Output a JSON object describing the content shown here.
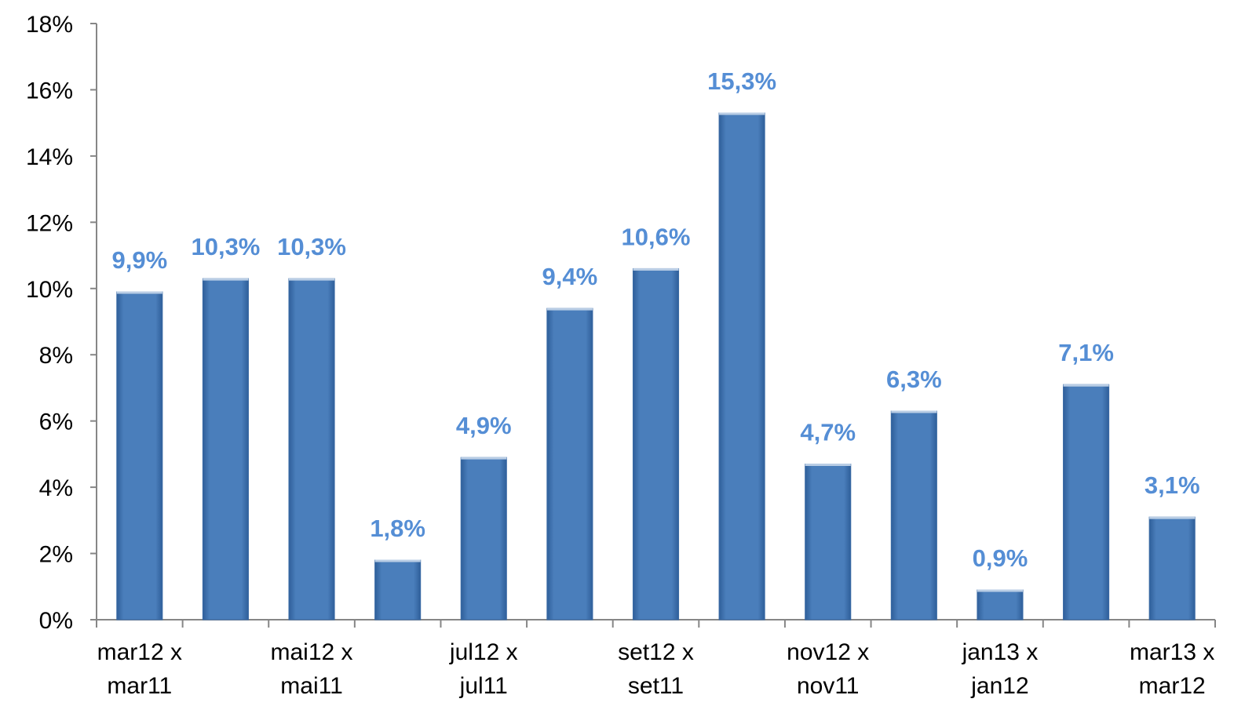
{
  "chart_data": {
    "type": "bar",
    "categories": [
      "mar12 x mar11",
      null,
      "mai12 x mai11",
      null,
      "jul12 x jul11",
      null,
      "set12 x set11",
      null,
      "nov12 x nov11",
      null,
      "jan13 x jan12",
      null,
      "mar13 x mar12"
    ],
    "values": [
      9.9,
      10.3,
      10.3,
      1.8,
      4.9,
      9.4,
      10.6,
      15.3,
      4.7,
      6.3,
      0.9,
      7.1,
      3.1
    ],
    "value_labels": [
      "9,9%",
      "10,3%",
      "10,3%",
      "1,8%",
      "4,9%",
      "9,4%",
      "10,6%",
      "15,3%",
      "4,7%",
      "6,3%",
      "0,9%",
      "7,1%",
      "3,1%"
    ],
    "color": "#4a7ebb",
    "label_color": "#558ed5",
    "ylim": [
      0,
      18
    ],
    "yticks": [
      {
        "value": 0,
        "label": "0%"
      },
      {
        "value": 2,
        "label": "2%"
      },
      {
        "value": 4,
        "label": "4%"
      },
      {
        "value": 6,
        "label": "6%"
      },
      {
        "value": 8,
        "label": "8%"
      },
      {
        "value": 10,
        "label": "10%"
      },
      {
        "value": 12,
        "label": "12%"
      },
      {
        "value": 14,
        "label": "14%"
      },
      {
        "value": 16,
        "label": "16%"
      },
      {
        "value": 18,
        "label": "18%"
      }
    ],
    "grid": false
  }
}
